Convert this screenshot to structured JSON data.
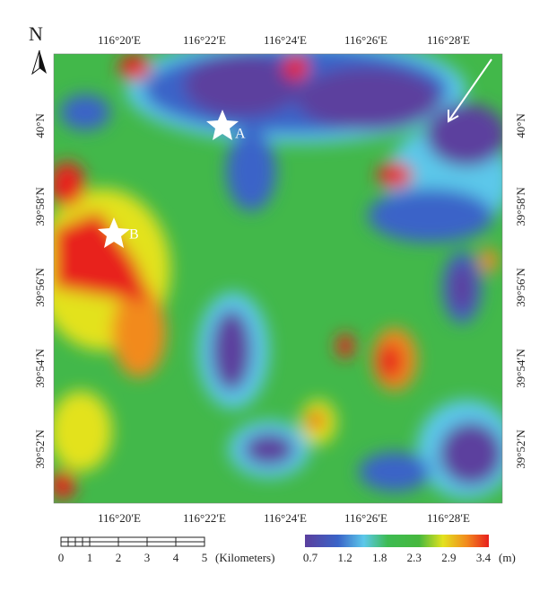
{
  "north": "N",
  "lon_labels_top": [
    "116°20′E",
    "116°22′E",
    "116°24′E",
    "116°26′E",
    "116°28′E"
  ],
  "lon_labels_bottom": [
    "116°20′E",
    "116°22′E",
    "116°24′E",
    "116°26′E",
    "116°28′E"
  ],
  "lat_labels_left": [
    "40°N",
    "39°58′N",
    "39°56′N",
    "39°54′N",
    "39°52′N"
  ],
  "lat_labels_right": [
    "40°N",
    "39°58′N",
    "39°56′N",
    "39°54′N",
    "39°52′N"
  ],
  "points": [
    {
      "label": "A"
    },
    {
      "label": "B"
    }
  ],
  "scale_bar": {
    "labels": [
      "0",
      "1",
      "2",
      "3",
      "4",
      "5"
    ],
    "unit": "(Kilometers)"
  },
  "legend": {
    "labels": [
      "0.7",
      "1.2",
      "1.8",
      "2.3",
      "2.9",
      "3.4"
    ],
    "unit": "(m)"
  }
}
